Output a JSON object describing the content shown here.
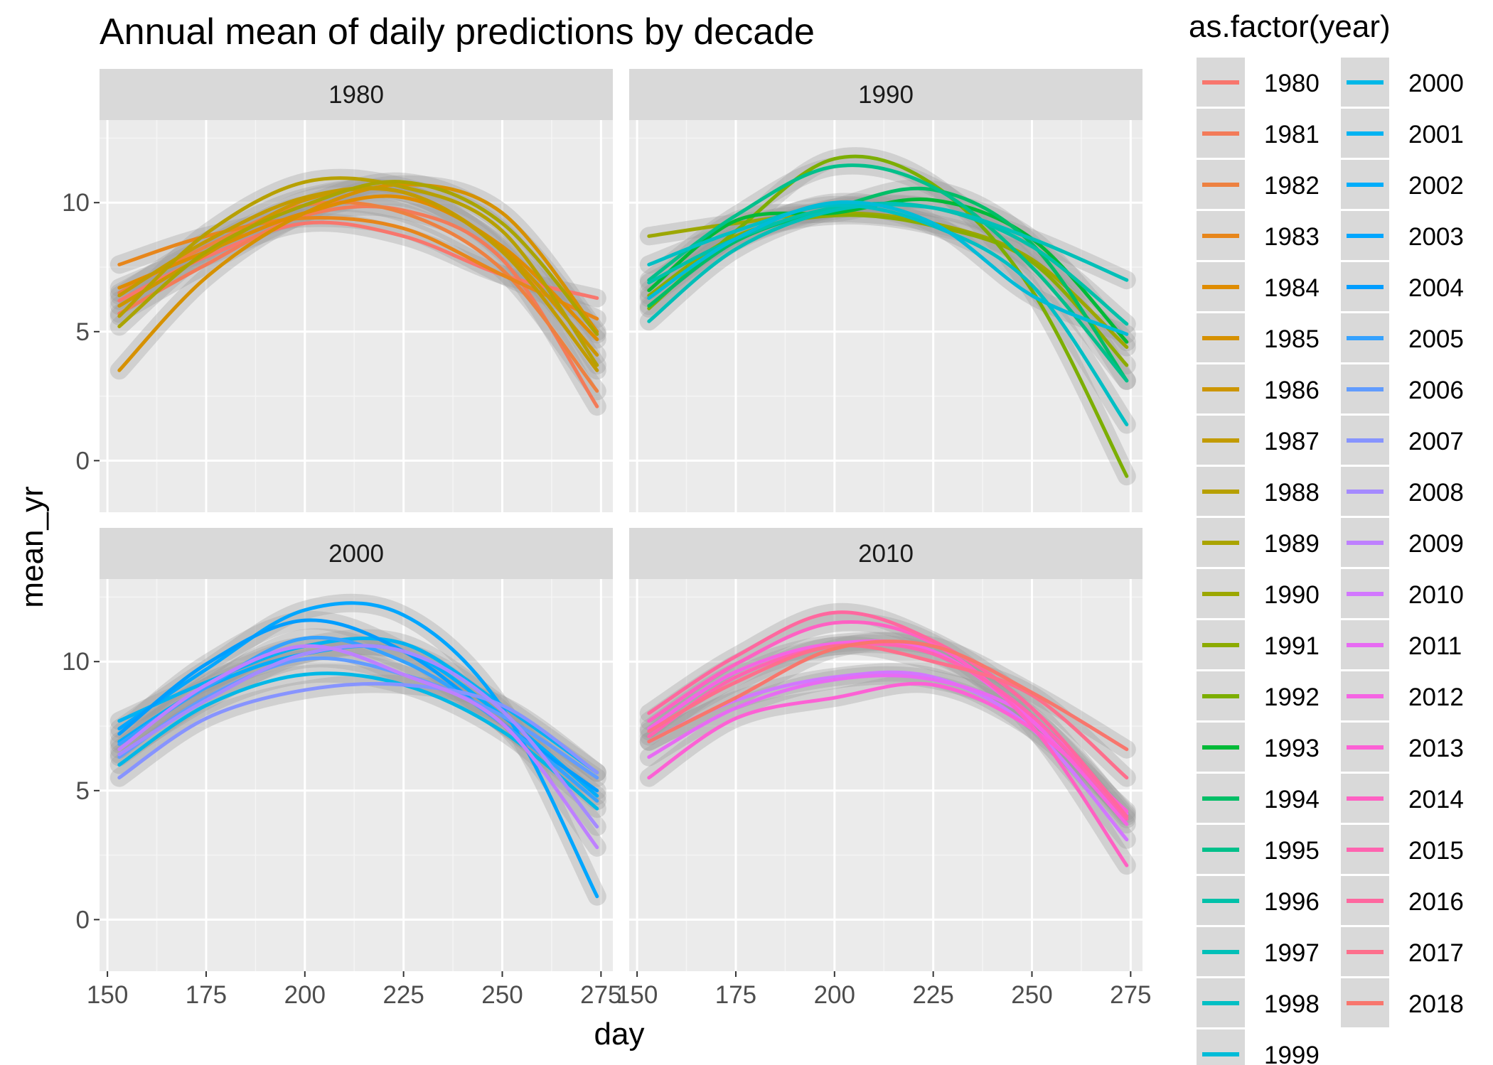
{
  "chart_data": {
    "type": "line",
    "title": "Annual mean of daily predictions by decade",
    "xlabel": "day",
    "ylabel": "mean_yr",
    "x_ticks": [
      150,
      175,
      200,
      225,
      250,
      275
    ],
    "y_ticks": [
      0,
      5,
      10
    ],
    "xlim": [
      148,
      278
    ],
    "ylim": [
      -2,
      13.2
    ],
    "smoothing": "loess with grey confidence band",
    "legend": {
      "title": "as.factor(year)",
      "placement": "right",
      "entries": [
        "1980",
        "1981",
        "1982",
        "1983",
        "1984",
        "1985",
        "1986",
        "1987",
        "1988",
        "1989",
        "1990",
        "1991",
        "1992",
        "1993",
        "1994",
        "1995",
        "1996",
        "1997",
        "1998",
        "1999",
        "2000",
        "2001",
        "2002",
        "2003",
        "2004",
        "2005",
        "2006",
        "2007",
        "2008",
        "2009",
        "2010",
        "2011",
        "2012",
        "2013",
        "2014",
        "2015",
        "2016",
        "2017",
        "2018"
      ],
      "colors": [
        "#F8766D",
        "#F37B59",
        "#ED8141",
        "#E7861B",
        "#DF8C00",
        "#D69100",
        "#CD9600",
        "#C29B00",
        "#B7A000",
        "#AAA400",
        "#9CA700",
        "#8CAB00",
        "#7CAE00",
        "#00BA38",
        "#00BE67",
        "#00C08B",
        "#00C1A9",
        "#00C0B8",
        "#00BFC4",
        "#00BCD8",
        "#00B8E7",
        "#00B3F2",
        "#00ADFA",
        "#00A6FF",
        "#009DFF",
        "#35A2FF",
        "#619CFF",
        "#8794FF",
        "#A58AFF",
        "#BE80FF",
        "#D277FF",
        "#E76BF3",
        "#F564E3",
        "#FC61D5",
        "#FF61C3",
        "#FF64B0",
        "#FF689F",
        "#FD6F8C",
        "#F8766D"
      ]
    },
    "facets": [
      {
        "label": "1980",
        "series": [
          {
            "year": "1980",
            "x": [
              153,
              175,
              200,
              225,
              250,
              274
            ],
            "y": [
              6.2,
              7.9,
              9.2,
              8.7,
              7.2,
              6.3
            ]
          },
          {
            "year": "1981",
            "x": [
              153,
              175,
              200,
              225,
              250,
              274
            ],
            "y": [
              5.7,
              7.6,
              9.5,
              9.7,
              7.8,
              2.1
            ]
          },
          {
            "year": "1982",
            "x": [
              153,
              175,
              200,
              225,
              250,
              274
            ],
            "y": [
              6.5,
              8.3,
              9.9,
              9.6,
              7.4,
              2.7
            ]
          },
          {
            "year": "1983",
            "x": [
              153,
              175,
              200,
              225,
              250,
              274
            ],
            "y": [
              7.6,
              8.7,
              9.4,
              9.0,
              7.2,
              5.5
            ]
          },
          {
            "year": "1984",
            "x": [
              153,
              175,
              200,
              225,
              250,
              274
            ],
            "y": [
              6.7,
              8.1,
              9.6,
              10.2,
              8.3,
              4.7
            ]
          },
          {
            "year": "1985",
            "x": [
              153,
              175,
              200,
              225,
              250,
              274
            ],
            "y": [
              3.5,
              7.1,
              9.6,
              10.7,
              9.6,
              5.0
            ]
          },
          {
            "year": "1986",
            "x": [
              153,
              175,
              200,
              225,
              250,
              274
            ],
            "y": [
              6.0,
              8.0,
              10.1,
              10.4,
              8.2,
              4.1
            ]
          },
          {
            "year": "1987",
            "x": [
              153,
              175,
              200,
              225,
              250,
              274
            ],
            "y": [
              6.4,
              8.5,
              10.2,
              10.4,
              8.1,
              3.5
            ]
          },
          {
            "year": "1988",
            "x": [
              153,
              175,
              200,
              225,
              250,
              274
            ],
            "y": [
              5.6,
              8.8,
              10.8,
              10.6,
              8.9,
              3.7
            ]
          },
          {
            "year": "1989",
            "x": [
              153,
              175,
              200,
              225,
              250,
              274
            ],
            "y": [
              5.2,
              8.1,
              9.9,
              10.8,
              9.2,
              4.9
            ]
          }
        ]
      },
      {
        "label": "1990",
        "series": [
          {
            "year": "1990",
            "x": [
              153,
              175,
              200,
              225,
              250,
              274
            ],
            "y": [
              8.7,
              9.2,
              9.6,
              9.2,
              7.8,
              4.4
            ]
          },
          {
            "year": "1991",
            "x": [
              153,
              175,
              200,
              225,
              250,
              274
            ],
            "y": [
              6.4,
              8.7,
              9.5,
              9.1,
              7.7,
              3.7
            ]
          },
          {
            "year": "1992",
            "x": [
              153,
              175,
              200,
              225,
              250,
              274
            ],
            "y": [
              5.9,
              8.9,
              11.7,
              10.7,
              6.6,
              -0.6
            ]
          },
          {
            "year": "1993",
            "x": [
              153,
              175,
              200,
              225,
              250,
              274
            ],
            "y": [
              6.6,
              9.3,
              9.6,
              10.1,
              8.6,
              4.6
            ]
          },
          {
            "year": "1994",
            "x": [
              153,
              175,
              200,
              225,
              250,
              274
            ],
            "y": [
              6.0,
              8.5,
              9.8,
              10.5,
              8.4,
              3.1
            ]
          },
          {
            "year": "1995",
            "x": [
              153,
              175,
              200,
              225,
              250,
              274
            ],
            "y": [
              7.0,
              9.5,
              11.4,
              10.6,
              7.5,
              3.1
            ]
          },
          {
            "year": "1996",
            "x": [
              153,
              175,
              200,
              225,
              250,
              274
            ],
            "y": [
              6.9,
              8.6,
              9.8,
              9.8,
              8.3,
              5.3
            ]
          },
          {
            "year": "1997",
            "x": [
              153,
              175,
              200,
              225,
              250,
              274
            ],
            "y": [
              5.4,
              8.2,
              9.7,
              9.8,
              8.6,
              7.0
            ]
          },
          {
            "year": "1998",
            "x": [
              153,
              175,
              200,
              225,
              250,
              274
            ],
            "y": [
              7.6,
              8.9,
              9.9,
              9.1,
              6.8,
              1.4
            ]
          },
          {
            "year": "1999",
            "x": [
              153,
              175,
              200,
              225,
              250,
              274
            ],
            "y": [
              6.3,
              8.6,
              10.0,
              9.2,
              6.4,
              4.9
            ]
          }
        ]
      },
      {
        "label": "2000",
        "series": [
          {
            "year": "2000",
            "x": [
              153,
              175,
              200,
              225,
              250,
              274
            ],
            "y": [
              6.0,
              8.3,
              9.5,
              9.1,
              7.3,
              4.3
            ]
          },
          {
            "year": "2001",
            "x": [
              153,
              175,
              200,
              225,
              250,
              274
            ],
            "y": [
              7.7,
              9.2,
              10.6,
              10.7,
              8.3,
              5.7
            ]
          },
          {
            "year": "2002",
            "x": [
              153,
              175,
              200,
              225,
              250,
              274
            ],
            "y": [
              6.9,
              9.0,
              10.3,
              10.4,
              7.9,
              4.8
            ]
          },
          {
            "year": "2003",
            "x": [
              153,
              175,
              200,
              225,
              250,
              274
            ],
            "y": [
              7.4,
              9.7,
              12.0,
              11.8,
              8.2,
              0.9
            ]
          },
          {
            "year": "2004",
            "x": [
              153,
              175,
              200,
              225,
              250,
              274
            ],
            "y": [
              7.2,
              9.9,
              11.6,
              10.4,
              7.6,
              5.0
            ]
          },
          {
            "year": "2005",
            "x": [
              153,
              175,
              200,
              225,
              250,
              274
            ],
            "y": [
              6.8,
              9.0,
              10.9,
              10.0,
              7.6,
              4.6
            ]
          },
          {
            "year": "2006",
            "x": [
              153,
              175,
              200,
              225,
              250,
              274
            ],
            "y": [
              6.3,
              8.6,
              10.1,
              9.5,
              7.9,
              5.5
            ]
          },
          {
            "year": "2007",
            "x": [
              153,
              175,
              200,
              225,
              250,
              274
            ],
            "y": [
              5.5,
              7.8,
              8.9,
              9.1,
              8.3,
              5.7
            ]
          },
          {
            "year": "2008",
            "x": [
              153,
              175,
              200,
              225,
              250,
              274
            ],
            "y": [
              6.4,
              8.5,
              10.3,
              10.4,
              8.1,
              3.6
            ]
          },
          {
            "year": "2009",
            "x": [
              153,
              175,
              200,
              225,
              250,
              274
            ],
            "y": [
              6.6,
              9.1,
              10.6,
              9.5,
              7.6,
              2.8
            ]
          }
        ]
      },
      {
        "label": "2010",
        "series": [
          {
            "year": "2010",
            "x": [
              153,
              175,
              200,
              225,
              250,
              274
            ],
            "y": [
              6.9,
              8.5,
              9.4,
              9.4,
              7.4,
              3.1
            ]
          },
          {
            "year": "2011",
            "x": [
              153,
              175,
              200,
              225,
              250,
              274
            ],
            "y": [
              6.3,
              8.2,
              9.3,
              9.3,
              7.8,
              4.1
            ]
          },
          {
            "year": "2012",
            "x": [
              153,
              175,
              200,
              225,
              250,
              274
            ],
            "y": [
              7.4,
              9.6,
              10.7,
              10.4,
              7.7,
              3.7
            ]
          },
          {
            "year": "2013",
            "x": [
              153,
              175,
              200,
              225,
              250,
              274
            ],
            "y": [
              5.5,
              7.8,
              8.6,
              9.1,
              7.4,
              4.2
            ]
          },
          {
            "year": "2014",
            "x": [
              153,
              175,
              200,
              225,
              250,
              274
            ],
            "y": [
              7.7,
              9.9,
              11.5,
              10.7,
              7.5,
              2.1
            ]
          },
          {
            "year": "2015",
            "x": [
              153,
              175,
              200,
              225,
              250,
              274
            ],
            "y": [
              7.1,
              9.4,
              10.6,
              10.3,
              7.9,
              3.9
            ]
          },
          {
            "year": "2016",
            "x": [
              153,
              175,
              200,
              225,
              250,
              274
            ],
            "y": [
              8.0,
              10.2,
              11.9,
              10.8,
              8.2,
              4.0
            ]
          },
          {
            "year": "2017",
            "x": [
              153,
              175,
              200,
              225,
              250,
              274
            ],
            "y": [
              7.3,
              9.2,
              10.6,
              10.0,
              8.7,
              5.5
            ]
          },
          {
            "year": "2018",
            "x": [
              153,
              175,
              200,
              225,
              250,
              274
            ],
            "y": [
              6.9,
              8.6,
              10.5,
              10.6,
              8.8,
              6.6
            ]
          }
        ]
      }
    ]
  }
}
